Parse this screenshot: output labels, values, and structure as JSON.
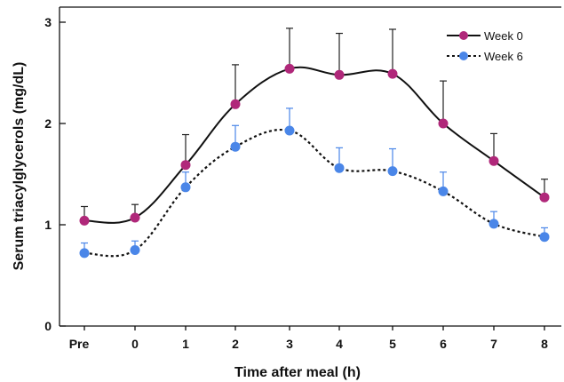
{
  "chart_data": {
    "type": "line",
    "xlabel": "Time after meal (h)",
    "ylabel": "Serum triacylglycerols (mg/dL)",
    "categories": [
      "Pre",
      "0",
      "1",
      "2",
      "3",
      "4",
      "5",
      "6",
      "7",
      "8"
    ],
    "ylim": [
      0,
      3
    ],
    "yticks": [
      "0",
      "1",
      "2",
      "3"
    ],
    "grid": false,
    "legend_position": "top-right",
    "series": [
      {
        "name": "Week 0",
        "color": "#b0287a",
        "line_style": "solid",
        "values": [
          1.04,
          1.07,
          1.59,
          2.19,
          2.54,
          2.48,
          2.49,
          2.0,
          1.63,
          1.27
        ],
        "errors": [
          0.14,
          0.13,
          0.3,
          0.39,
          0.4,
          0.41,
          0.44,
          0.42,
          0.27,
          0.18
        ]
      },
      {
        "name": "Week 6",
        "color": "#4a86e8",
        "line_style": "dotted",
        "values": [
          0.72,
          0.75,
          1.37,
          1.77,
          1.93,
          1.56,
          1.53,
          1.33,
          1.01,
          0.88
        ],
        "errors": [
          0.1,
          0.09,
          0.15,
          0.21,
          0.22,
          0.2,
          0.22,
          0.19,
          0.12,
          0.09
        ]
      }
    ]
  }
}
